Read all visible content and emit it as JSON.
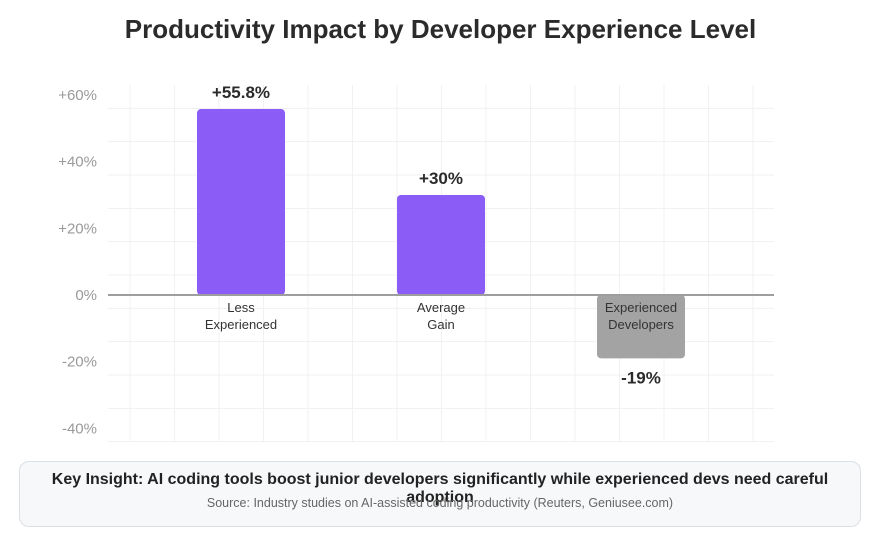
{
  "title": "Productivity Impact by Developer Experience Level",
  "chart_data": {
    "type": "bar",
    "categories": [
      {
        "lines": [
          "Less",
          "Experienced"
        ]
      },
      {
        "lines": [
          "Average",
          "Gain"
        ]
      },
      {
        "lines": [
          "Experienced",
          "Developers"
        ]
      }
    ],
    "values": [
      55.8,
      30,
      -19
    ],
    "value_labels": [
      "+55.8%",
      "+30%",
      "-19%"
    ],
    "bar_colors": [
      "#8b5cf6",
      "#8b5cf6",
      "#a3a3a3"
    ],
    "category_label_colors": [
      "#333333",
      "#333333",
      "#333333"
    ],
    "yticks": [
      {
        "value": 60,
        "label": "+60%"
      },
      {
        "value": 40,
        "label": "+40%"
      },
      {
        "value": 20,
        "label": "+20%"
      },
      {
        "value": 0,
        "label": "0%"
      },
      {
        "value": -20,
        "label": "-20%"
      },
      {
        "value": -40,
        "label": "-40%"
      }
    ],
    "ylim": [
      -44,
      63
    ],
    "grid": true,
    "zero_line": true
  },
  "insight": {
    "headline": "Key Insight: AI coding tools boost junior developers significantly while experienced devs need careful adoption",
    "source": "Source: Industry studies on AI-assisted coding productivity (Reuters, Geniusee.com)"
  }
}
